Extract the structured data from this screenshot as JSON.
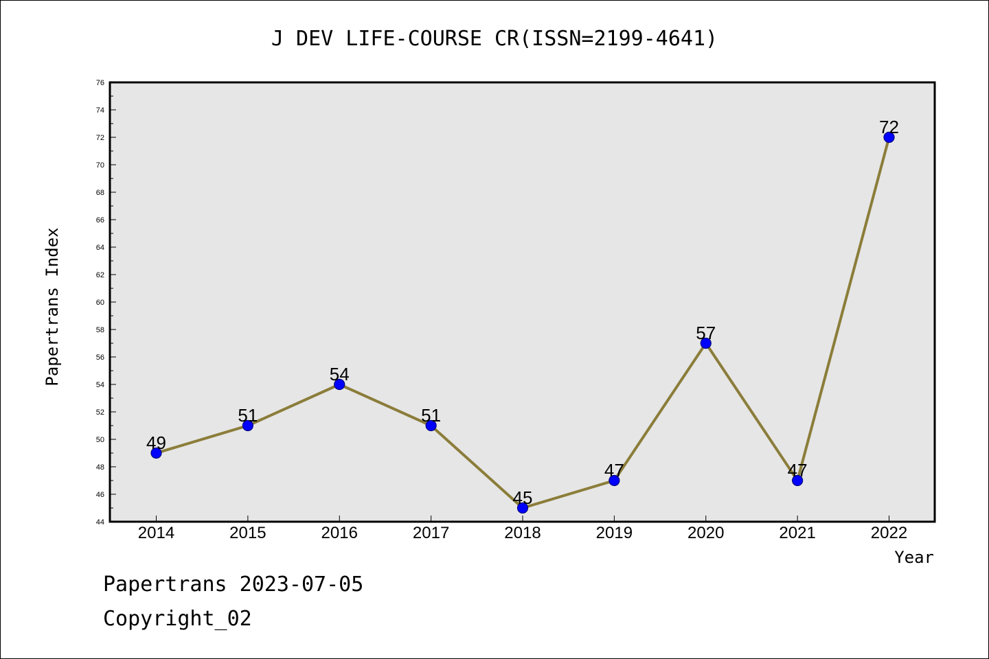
{
  "chart_data": {
    "type": "line",
    "title": "J DEV LIFE-COURSE CR(ISSN=2199-4641)",
    "xlabel": "Year",
    "ylabel": "Papertrans Index",
    "categories": [
      "2014",
      "2015",
      "2016",
      "2017",
      "2018",
      "2019",
      "2020",
      "2021",
      "2022"
    ],
    "series": [
      {
        "values": [
          49,
          51,
          54,
          51,
          45,
          47,
          57,
          47,
          72
        ]
      }
    ],
    "ylim": [
      44,
      76
    ],
    "yticks": [
      44,
      46,
      48,
      50,
      52,
      54,
      56,
      58,
      60,
      62,
      64,
      66,
      68,
      70,
      72,
      74,
      76
    ],
    "grid": false,
    "colors": {
      "line": "#8B7D3A",
      "marker": "#0000FF",
      "marker_edge": "#000080",
      "plot_background": "#E6E6E6"
    }
  },
  "footer": {
    "line1": "Papertrans 2023-07-05",
    "line2": "Copyright_02"
  }
}
